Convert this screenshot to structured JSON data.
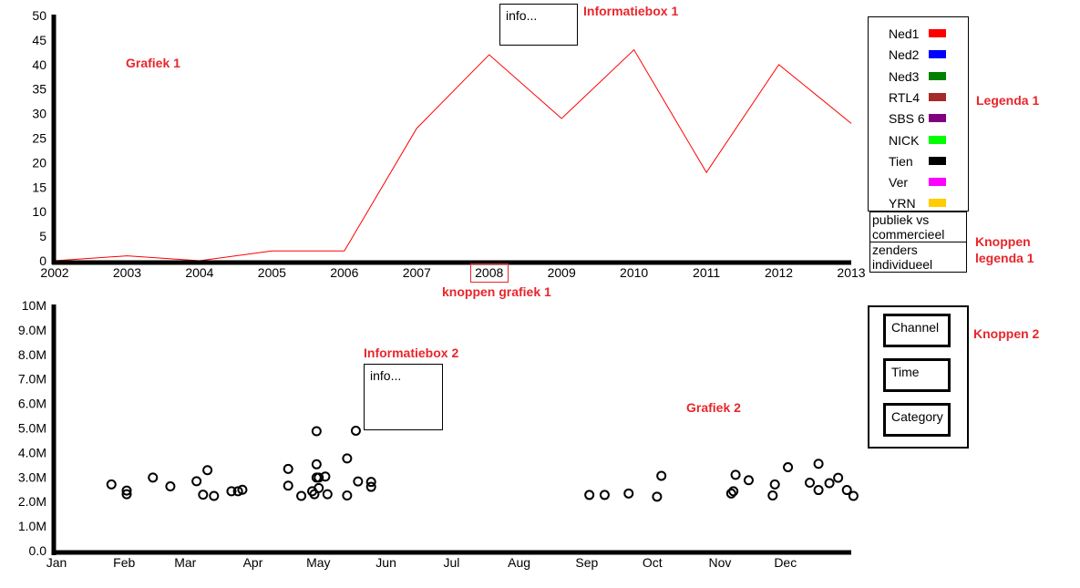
{
  "annotations": {
    "grafiek1": "Grafiek 1",
    "grafiek2": "Grafiek 2",
    "informatiebox1": "Informatiebox 1",
    "informatiebox2": "Informatiebox 2",
    "legenda1": "Legenda 1",
    "knoppen_legenda1_line1": "Knoppen",
    "knoppen_legenda1_line2": "legenda 1",
    "knoppen_grafiek1": "knoppen grafiek 1",
    "knoppen2": "Knoppen 2"
  },
  "infobox1": {
    "text": "info..."
  },
  "infobox2": {
    "text": "info..."
  },
  "legend1": {
    "items": [
      {
        "label": "Ned1",
        "color": "#ff0000"
      },
      {
        "label": "Ned2",
        "color": "#0000ff"
      },
      {
        "label": "Ned3",
        "color": "#008000"
      },
      {
        "label": "RTL4",
        "color": "#a52a2a"
      },
      {
        "label": "SBS 6",
        "color": "#800080"
      },
      {
        "label": "NICK",
        "color": "#00ff00"
      },
      {
        "label": "Tien",
        "color": "#000000"
      },
      {
        "label": "Ver",
        "color": "#ff00ff"
      },
      {
        "label": "YRN",
        "color": "#ffcc00"
      }
    ]
  },
  "legend_buttons": {
    "publiek": "publiek vs commercieel",
    "zenders": "zenders individueel"
  },
  "buttons2": {
    "channel": "Channel",
    "time": "Time",
    "category": "Category"
  },
  "chart_data": [
    {
      "type": "line",
      "title": "Grafiek 1",
      "x": [
        2002,
        2003,
        2004,
        2005,
        2006,
        2007,
        2008,
        2009,
        2010,
        2011,
        2012,
        2013
      ],
      "x_tick_labels": [
        "2002",
        "2003",
        "2004",
        "2005",
        "2006",
        "2007",
        "2008",
        "2009",
        "2010",
        "2011",
        "2012",
        "2013"
      ],
      "y_ticks": [
        0,
        5,
        10,
        15,
        20,
        25,
        30,
        35,
        40,
        45,
        50
      ],
      "ylim": [
        0,
        50
      ],
      "series": [
        {
          "name": "Ned1",
          "color": "#ff0000",
          "values": [
            0,
            1,
            0,
            2,
            2,
            27,
            42,
            29,
            43,
            18,
            40,
            28
          ]
        }
      ]
    },
    {
      "type": "scatter",
      "title": "Grafiek 2",
      "x_unit": "day of year",
      "xlim": [
        1,
        366
      ],
      "x_tick_labels": [
        "Jan",
        "Feb",
        "Mar",
        "Apr",
        "May",
        "Jun",
        "Jul",
        "Aug",
        "Sep",
        "Oct",
        "Nov",
        "Dec"
      ],
      "x_tick_days": [
        1,
        32,
        60,
        91,
        121,
        152,
        182,
        213,
        244,
        274,
        305,
        335
      ],
      "y_tick_labels": [
        "0.0",
        "1.0M",
        "2.0M",
        "3.0M",
        "4.0M",
        "5.0M",
        "6.0M",
        "7.0M",
        "8.0M",
        "9.0M",
        "10M"
      ],
      "y_ticks": [
        0,
        1000000,
        2000000,
        3000000,
        4000000,
        5000000,
        6000000,
        7000000,
        8000000,
        9000000,
        10000000
      ],
      "ylim": [
        0,
        10000000
      ],
      "points": [
        [
          27,
          2700000
        ],
        [
          34,
          2450000
        ],
        [
          34,
          2300000
        ],
        [
          46,
          2980000
        ],
        [
          54,
          2620000
        ],
        [
          66,
          2830000
        ],
        [
          69,
          2280000
        ],
        [
          71,
          3280000
        ],
        [
          74,
          2230000
        ],
        [
          82,
          2420000
        ],
        [
          85,
          2420000
        ],
        [
          87,
          2480000
        ],
        [
          108,
          3330000
        ],
        [
          108,
          2650000
        ],
        [
          114,
          2230000
        ],
        [
          119,
          2420000
        ],
        [
          120,
          2300000
        ],
        [
          121,
          4870000
        ],
        [
          121,
          3520000
        ],
        [
          121,
          2980000
        ],
        [
          122,
          2980000
        ],
        [
          122,
          2550000
        ],
        [
          125,
          3020000
        ],
        [
          126,
          2300000
        ],
        [
          135,
          3760000
        ],
        [
          135,
          2250000
        ],
        [
          139,
          4890000
        ],
        [
          140,
          2820000
        ],
        [
          146,
          2800000
        ],
        [
          146,
          2600000
        ],
        [
          246,
          2270000
        ],
        [
          253,
          2270000
        ],
        [
          264,
          2330000
        ],
        [
          277,
          2200000
        ],
        [
          279,
          3050000
        ],
        [
          311,
          2330000
        ],
        [
          312,
          2420000
        ],
        [
          313,
          3090000
        ],
        [
          319,
          2870000
        ],
        [
          330,
          2250000
        ],
        [
          331,
          2700000
        ],
        [
          337,
          3400000
        ],
        [
          347,
          2770000
        ],
        [
          351,
          3540000
        ],
        [
          351,
          2470000
        ],
        [
          356,
          2750000
        ],
        [
          360,
          2970000
        ],
        [
          364,
          2470000
        ],
        [
          367,
          2230000
        ]
      ]
    }
  ]
}
